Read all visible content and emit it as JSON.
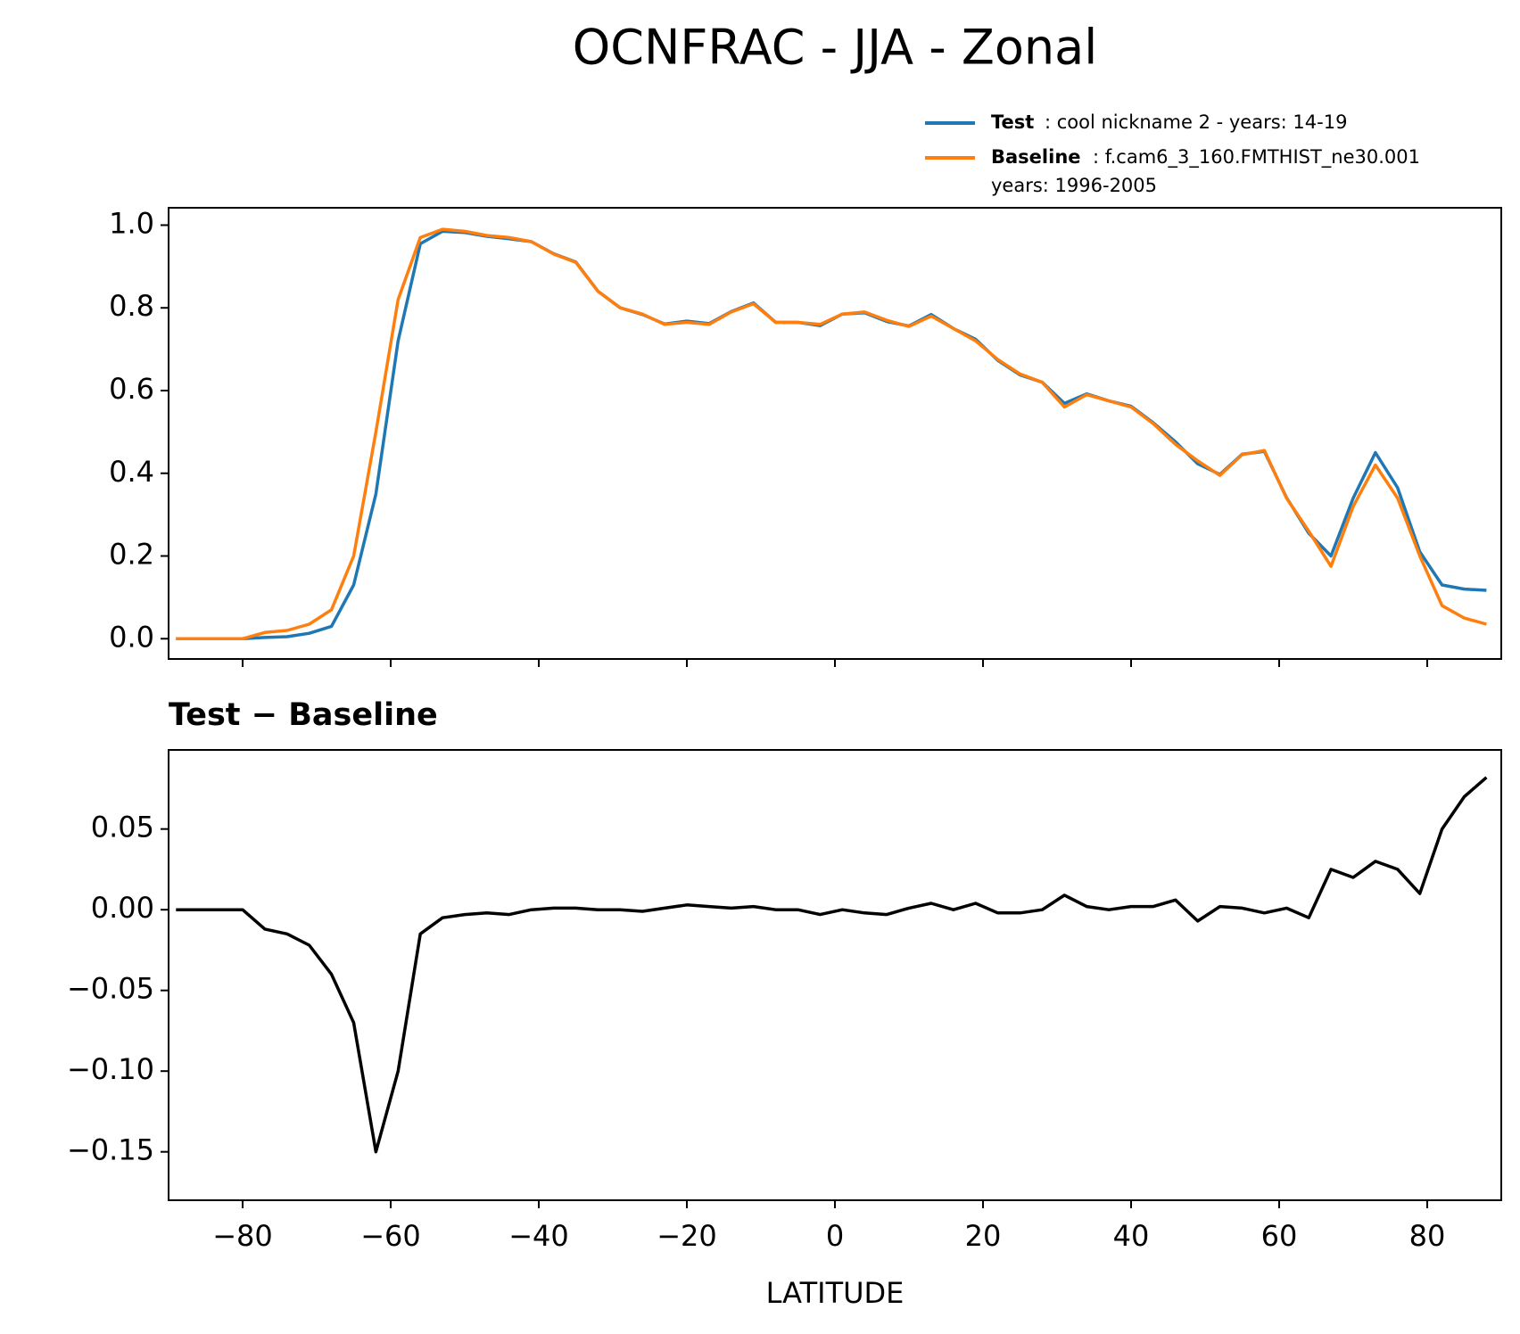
{
  "title": "OCNFRAC - JJA - Zonal",
  "chart_data": [
    {
      "type": "line",
      "x": [
        -89,
        -86,
        -83,
        -80,
        -77,
        -74,
        -71,
        -68,
        -65,
        -62,
        -59,
        -56,
        -53,
        -50,
        -47,
        -44,
        -41,
        -38,
        -35,
        -32,
        -29,
        -26,
        -23,
        -20,
        -17,
        -14,
        -11,
        -8,
        -5,
        -2,
        1,
        4,
        7,
        10,
        13,
        16,
        19,
        22,
        25,
        28,
        31,
        34,
        37,
        40,
        43,
        46,
        49,
        52,
        55,
        58,
        61,
        64,
        67,
        70,
        73,
        76,
        79,
        82,
        85,
        88
      ],
      "series": [
        {
          "name": "Test",
          "description": [
            ": cool nickname 2 - years: 14-19"
          ],
          "color": "#1f77b4",
          "values": [
            0,
            0,
            0,
            0,
            0.003,
            0.005,
            0.013,
            0.03,
            0.13,
            0.35,
            0.72,
            0.955,
            0.985,
            0.982,
            0.973,
            0.967,
            0.96,
            0.931,
            0.911,
            0.84,
            0.8,
            0.784,
            0.761,
            0.768,
            0.762,
            0.791,
            0.812,
            0.765,
            0.765,
            0.757,
            0.785,
            0.788,
            0.767,
            0.756,
            0.784,
            0.75,
            0.724,
            0.673,
            0.638,
            0.62,
            0.569,
            0.592,
            0.575,
            0.562,
            0.522,
            0.476,
            0.423,
            0.397,
            0.446,
            0.453,
            0.341,
            0.255,
            0.2,
            0.34,
            0.45,
            0.365,
            0.21,
            0.13,
            0.12,
            0.117
          ]
        },
        {
          "name": "Baseline",
          "description": [
            ": f.cam6_3_160.FMTHIST_ne30.001",
            "years: 1996-2005"
          ],
          "color": "#ff7f0e",
          "values": [
            0,
            0,
            0,
            0,
            0.015,
            0.02,
            0.035,
            0.07,
            0.2,
            0.5,
            0.82,
            0.97,
            0.99,
            0.985,
            0.975,
            0.97,
            0.96,
            0.93,
            0.91,
            0.84,
            0.8,
            0.785,
            0.76,
            0.765,
            0.76,
            0.79,
            0.81,
            0.765,
            0.765,
            0.76,
            0.785,
            0.79,
            0.77,
            0.755,
            0.78,
            0.75,
            0.72,
            0.675,
            0.64,
            0.62,
            0.56,
            0.59,
            0.575,
            0.56,
            0.52,
            0.47,
            0.43,
            0.395,
            0.445,
            0.455,
            0.34,
            0.26,
            0.175,
            0.32,
            0.42,
            0.34,
            0.2,
            0.08,
            0.05,
            0.035
          ]
        }
      ],
      "xlim": [
        -90,
        90
      ],
      "xticks": [
        -80,
        -60,
        -40,
        -20,
        0,
        20,
        40,
        60,
        80
      ],
      "ylim": [
        -0.049,
        1.042
      ],
      "yticks": [
        {
          "value": 0,
          "label": "0.0"
        },
        0.2,
        0.4,
        0.6,
        0.8,
        {
          "value": 1,
          "label": "1.0"
        }
      ]
    },
    {
      "type": "line",
      "title": "Test − Baseline",
      "xlabel": "LATITUDE",
      "x": [
        -89,
        -86,
        -83,
        -80,
        -77,
        -74,
        -71,
        -68,
        -65,
        -62,
        -59,
        -56,
        -53,
        -50,
        -47,
        -44,
        -41,
        -38,
        -35,
        -32,
        -29,
        -26,
        -23,
        -20,
        -17,
        -14,
        -11,
        -8,
        -5,
        -2,
        1,
        4,
        7,
        10,
        13,
        16,
        19,
        22,
        25,
        28,
        31,
        34,
        37,
        40,
        43,
        46,
        49,
        52,
        55,
        58,
        61,
        64,
        67,
        70,
        73,
        76,
        79,
        82,
        85,
        88
      ],
      "series": [
        {
          "color": "#000000",
          "values": [
            0,
            0,
            0,
            0,
            -0.012,
            -0.015,
            -0.022,
            -0.04,
            -0.07,
            -0.15,
            -0.1,
            -0.015,
            -0.005,
            -0.003,
            -0.002,
            -0.003,
            0,
            0.001,
            0.001,
            0,
            0,
            -0.001,
            0.001,
            0.003,
            0.002,
            0.001,
            0.002,
            0,
            0,
            -0.003,
            0,
            -0.002,
            -0.003,
            0.001,
            0.004,
            0,
            0.004,
            -0.002,
            -0.002,
            0,
            0.009,
            0.002,
            0,
            0.002,
            0.002,
            0.006,
            -0.007,
            0.002,
            0.001,
            -0.002,
            0.001,
            -0.005,
            0.025,
            0.02,
            0.03,
            0.025,
            0.01,
            0.05,
            0.07,
            0.082
          ]
        }
      ],
      "xlim": [
        -90,
        90
      ],
      "xticks": [
        {
          "value": -80,
          "label": "−80"
        },
        {
          "value": -60,
          "label": "−60"
        },
        {
          "value": -40,
          "label": "−40"
        },
        {
          "value": -20,
          "label": "−20"
        },
        0,
        20,
        40,
        60,
        80
      ],
      "ylim": [
        -0.18,
        0.099
      ],
      "yticks": [
        {
          "value": -0.15,
          "label": "−0.15"
        },
        {
          "value": -0.1,
          "label": "−0.10"
        },
        {
          "value": -0.05,
          "label": "−0.05"
        },
        {
          "value": 0,
          "label": "0.00"
        },
        0.05
      ]
    }
  ]
}
